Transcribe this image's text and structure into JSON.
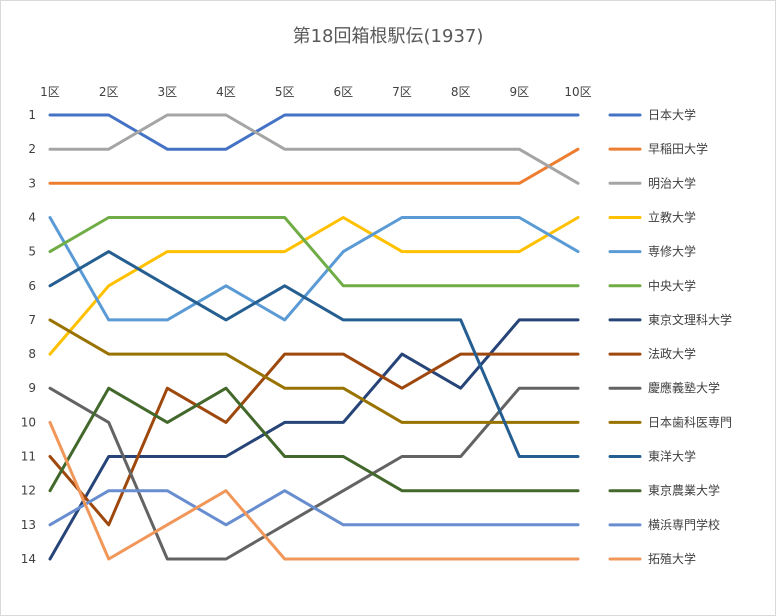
{
  "chart_data": {
    "type": "line",
    "title": "第18回箱根駅伝(1937)",
    "categories": [
      "1区",
      "2区",
      "3区",
      "4区",
      "5区",
      "6区",
      "7区",
      "8区",
      "9区",
      "10区"
    ],
    "y_ticks": [
      "1",
      "2",
      "3",
      "4",
      "5",
      "6",
      "7",
      "8",
      "9",
      "10",
      "11",
      "12",
      "13",
      "14"
    ],
    "y_range": [
      1,
      14
    ],
    "y_reversed": true,
    "x_axis_position": "top",
    "grid": false,
    "legend_position": "right",
    "series": [
      {
        "name": "日本大学",
        "color": "#4472c4",
        "values": [
          1,
          1,
          2,
          2,
          1,
          1,
          1,
          1,
          1,
          1
        ]
      },
      {
        "name": "早稲田大学",
        "color": "#ed7d31",
        "values": [
          3,
          3,
          3,
          3,
          3,
          3,
          3,
          3,
          3,
          2
        ]
      },
      {
        "name": "明治大学",
        "color": "#a5a5a5",
        "values": [
          2,
          2,
          1,
          1,
          2,
          2,
          2,
          2,
          2,
          3
        ]
      },
      {
        "name": "立教大学",
        "color": "#ffc000",
        "values": [
          8,
          6,
          5,
          5,
          5,
          4,
          5,
          5,
          5,
          4
        ]
      },
      {
        "name": "専修大学",
        "color": "#5b9bd5",
        "values": [
          4,
          7,
          7,
          6,
          7,
          5,
          4,
          4,
          4,
          5
        ]
      },
      {
        "name": "中央大学",
        "color": "#70ad47",
        "values": [
          5,
          4,
          4,
          4,
          4,
          6,
          6,
          6,
          6,
          6
        ]
      },
      {
        "name": "東京文理科大学",
        "color": "#264478",
        "values": [
          14,
          11,
          11,
          11,
          10,
          10,
          8,
          9,
          7,
          7
        ]
      },
      {
        "name": "法政大学",
        "color": "#9e480e",
        "values": [
          11,
          13,
          9,
          10,
          8,
          8,
          9,
          8,
          8,
          8
        ]
      },
      {
        "name": "慶應義塾大学",
        "color": "#636363",
        "values": [
          9,
          10,
          14,
          14,
          13,
          12,
          11,
          11,
          9,
          9
        ]
      },
      {
        "name": "日本歯科医専門",
        "color": "#997300",
        "values": [
          7,
          8,
          8,
          8,
          9,
          9,
          10,
          10,
          10,
          10
        ]
      },
      {
        "name": "東洋大学",
        "color": "#255e91",
        "values": [
          6,
          5,
          6,
          7,
          6,
          7,
          7,
          7,
          11,
          11
        ]
      },
      {
        "name": "東京農業大学",
        "color": "#43682b",
        "values": [
          12,
          9,
          10,
          9,
          11,
          11,
          12,
          12,
          12,
          12
        ]
      },
      {
        "name": "横浜専門学校",
        "color": "#698ed0",
        "values": [
          13,
          12,
          12,
          13,
          12,
          13,
          13,
          13,
          13,
          13
        ]
      },
      {
        "name": "拓殖大学",
        "color": "#f1975a",
        "values": [
          10,
          14,
          13,
          12,
          14,
          14,
          14,
          14,
          14,
          14
        ]
      }
    ]
  }
}
